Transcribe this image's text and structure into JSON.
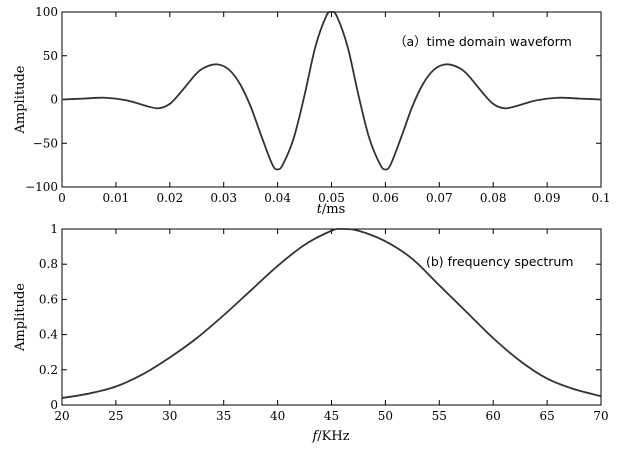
{
  "chart_data": [
    {
      "type": "line",
      "annotation": "（a）time domain waveform",
      "xlabel": {
        "italic": "t",
        "rest": "/ms"
      },
      "ylabel": "Amplitude",
      "xlim": [
        0,
        0.1
      ],
      "ylim": [
        -100,
        100
      ],
      "xticks": [
        0,
        0.01,
        0.02,
        0.03,
        0.04,
        0.05,
        0.06,
        0.07,
        0.08,
        0.09,
        0.1
      ],
      "xtick_labels": [
        "0",
        "0.01",
        "0.02",
        "0.03",
        "0.04",
        "0.05",
        "0.06",
        "0.07",
        "0.08",
        "0.09",
        "0.1"
      ],
      "yticks": [
        -100,
        -50,
        0,
        50,
        100
      ],
      "ytick_labels": [
        "−100",
        "−50",
        "0",
        "50",
        "100"
      ],
      "grid": false,
      "series": [
        {
          "x": [
            0,
            0.004,
            0.008,
            0.012,
            0.016,
            0.018,
            0.02,
            0.022,
            0.025,
            0.027,
            0.029,
            0.031,
            0.033,
            0.035,
            0.037,
            0.039,
            0.04,
            0.041,
            0.043,
            0.045,
            0.047,
            0.049,
            0.05,
            0.051,
            0.053,
            0.055,
            0.057,
            0.059,
            0.06,
            0.061,
            0.063,
            0.065,
            0.067,
            0.069,
            0.071,
            0.073,
            0.075,
            0.078,
            0.08,
            0.082,
            0.084,
            0.088,
            0.092,
            0.096,
            0.1
          ],
          "y": [
            0,
            1,
            2,
            -1,
            -8,
            -10,
            -5,
            8,
            30,
            38,
            40,
            34,
            18,
            -8,
            -42,
            -74,
            -80,
            -74,
            -44,
            5,
            60,
            95,
            100,
            95,
            60,
            5,
            -44,
            -74,
            -80,
            -74,
            -42,
            -8,
            18,
            34,
            40,
            38,
            30,
            8,
            -5,
            -10,
            -8,
            -1,
            2,
            1,
            0
          ]
        }
      ]
    },
    {
      "type": "line",
      "annotation": "(b) frequency spectrum",
      "xlabel": {
        "italic": "f",
        "rest": "/KHz"
      },
      "ylabel": "Amplitude",
      "xlim": [
        20,
        70
      ],
      "ylim": [
        0,
        1
      ],
      "xticks": [
        20,
        25,
        30,
        35,
        40,
        45,
        50,
        55,
        60,
        65,
        70
      ],
      "xtick_labels": [
        "20",
        "25",
        "30",
        "35",
        "40",
        "45",
        "50",
        "55",
        "60",
        "65",
        "70"
      ],
      "yticks": [
        0,
        0.2,
        0.4,
        0.6,
        0.8,
        1
      ],
      "ytick_labels": [
        "0",
        "0.2",
        "0.4",
        "0.6",
        "0.8",
        "1"
      ],
      "grid": false,
      "series": [
        {
          "x": [
            20,
            22.5,
            25,
            27.5,
            30,
            32.5,
            35,
            37.5,
            40,
            42.5,
            45,
            46,
            47.5,
            50,
            52.5,
            55,
            57.5,
            60,
            62.5,
            65,
            67.5,
            70
          ],
          "y": [
            0.04,
            0.065,
            0.105,
            0.175,
            0.27,
            0.38,
            0.51,
            0.65,
            0.79,
            0.91,
            0.99,
            1.0,
            0.99,
            0.93,
            0.83,
            0.68,
            0.53,
            0.38,
            0.25,
            0.15,
            0.09,
            0.05
          ]
        }
      ]
    }
  ]
}
